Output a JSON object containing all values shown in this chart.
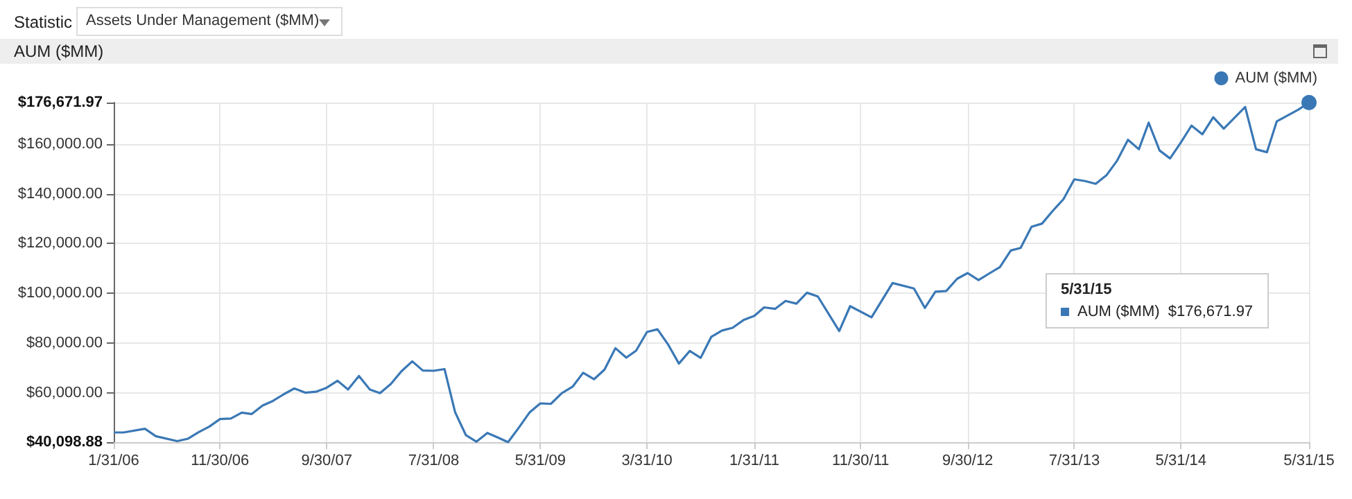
{
  "chart_data": {
    "type": "line",
    "title": "AUM ($MM)",
    "annotations": [
      "Statistic",
      "Assets Under Management ($MM)",
      "5/31/15\nAUM ($MM)  $176,671.97"
    ],
    "series": [
      {
        "name": "AUM ($MM)",
        "color": "#3a78b5",
        "x": [
          "2006-01-31",
          "2006-02-28",
          "2006-04-30",
          "2006-05-31",
          "2006-07-31",
          "2006-08-31",
          "2006-09-30",
          "2006-10-31",
          "2006-11-30",
          "2006-12-31",
          "2007-01-31",
          "2007-02-28",
          "2007-03-31",
          "2007-04-30",
          "2007-05-31",
          "2007-06-30",
          "2007-07-31",
          "2007-08-31",
          "2007-09-30",
          "2007-10-31",
          "2007-11-30",
          "2007-12-31",
          "2008-01-31",
          "2008-02-29",
          "2008-03-31",
          "2008-04-30",
          "2008-05-31",
          "2008-06-30",
          "2008-07-31",
          "2008-08-31",
          "2008-09-30",
          "2008-10-31",
          "2008-11-30",
          "2008-12-31",
          "2009-01-31",
          "2009-02-28",
          "2009-03-31",
          "2009-04-30",
          "2009-05-31",
          "2009-06-30",
          "2009-07-31",
          "2009-08-31",
          "2009-09-30",
          "2009-10-31",
          "2009-11-30",
          "2009-12-31",
          "2010-01-31",
          "2010-02-28",
          "2010-03-31",
          "2010-04-30",
          "2010-05-31",
          "2010-06-30",
          "2010-07-31",
          "2010-08-31",
          "2010-09-30",
          "2010-10-31",
          "2010-11-30",
          "2010-12-31",
          "2011-01-31",
          "2011-02-28",
          "2011-03-31",
          "2011-04-30",
          "2011-05-31",
          "2011-06-30",
          "2011-07-31",
          "2011-09-30",
          "2011-10-31",
          "2011-12-31",
          "2012-02-29",
          "2012-04-30",
          "2012-05-31",
          "2012-06-30",
          "2012-07-31",
          "2012-08-31",
          "2012-09-30",
          "2012-10-31",
          "2012-11-30",
          "2012-12-31",
          "2013-01-31",
          "2013-02-28",
          "2013-03-31",
          "2013-04-30",
          "2013-05-31",
          "2013-06-30",
          "2013-07-31",
          "2013-08-31",
          "2013-09-30",
          "2013-10-31",
          "2013-11-30",
          "2013-12-31",
          "2014-01-31",
          "2014-02-28",
          "2014-03-31",
          "2014-04-30",
          "2014-05-31",
          "2014-06-30",
          "2014-07-31",
          "2014-08-31",
          "2014-09-30",
          "2014-11-30",
          "2014-12-31",
          "2015-01-31",
          "2015-02-28",
          "2015-03-31",
          "2015-04-30",
          "2015-05-31"
        ],
        "values": [
          44000,
          44000,
          45500,
          42500,
          40500,
          41500,
          44100,
          46400,
          49400,
          49600,
          52000,
          51400,
          54800,
          56700,
          59400,
          61700,
          60000,
          60400,
          62000,
          64800,
          61300,
          66700,
          61300,
          59800,
          63500,
          68600,
          72600,
          68900,
          68800,
          69500,
          52200,
          42900,
          40300,
          43800,
          41900,
          40098.88,
          46000,
          52000,
          55700,
          55500,
          59800,
          62400,
          68000,
          65400,
          69300,
          77900,
          74100,
          76900,
          84400,
          85500,
          79200,
          71700,
          76800,
          74000,
          82400,
          85000,
          86100,
          89200,
          90900,
          94300,
          93700,
          96900,
          95800,
          100200,
          98700,
          84800,
          94800,
          90300,
          104100,
          101900,
          94100,
          100600,
          100900,
          105800,
          108100,
          105300,
          107900,
          110500,
          117200,
          118200,
          126700,
          128000,
          133200,
          137800,
          145800,
          145100,
          144000,
          147500,
          153300,
          161700,
          157900,
          168600,
          157400,
          154200,
          160700,
          167400,
          163900,
          170800,
          166200,
          174900,
          157900,
          156700,
          169100,
          171500,
          173800,
          176671.97
        ]
      }
    ],
    "xlim": [
      "2006-01-31",
      "2015-05-31"
    ],
    "xticks": [
      {
        "value": "2006-01-31",
        "label": "1/31/06"
      },
      {
        "value": "2006-11-30",
        "label": "11/30/06"
      },
      {
        "value": "2007-09-30",
        "label": "9/30/07"
      },
      {
        "value": "2008-07-31",
        "label": "7/31/08"
      },
      {
        "value": "2009-05-31",
        "label": "5/31/09"
      },
      {
        "value": "2010-03-31",
        "label": "3/31/10"
      },
      {
        "value": "2011-01-31",
        "label": "1/31/11"
      },
      {
        "value": "2011-11-30",
        "label": "11/30/11"
      },
      {
        "value": "2012-09-30",
        "label": "9/30/12"
      },
      {
        "value": "2013-07-31",
        "label": "7/31/13"
      },
      {
        "value": "2014-05-31",
        "label": "5/31/14"
      },
      {
        "value": "2015-05-31",
        "label": "5/31/15"
      }
    ],
    "ylim": [
      40098.88,
      176671.97
    ],
    "yticks": [
      {
        "value": 40098.88,
        "label": "$40,098.88"
      },
      {
        "value": 60000,
        "label": "$60,000.00"
      },
      {
        "value": 80000,
        "label": "$80,000.00"
      },
      {
        "value": 100000,
        "label": "$100,000.00"
      },
      {
        "value": 120000,
        "label": "$120,000.00"
      },
      {
        "value": 140000,
        "label": "$140,000.00"
      },
      {
        "value": 160000,
        "label": "$160,000.00"
      },
      {
        "value": 176671.97,
        "label": "$176,671.97"
      }
    ],
    "grid": true,
    "legend": "top right",
    "marker": "none",
    "line_style": "solid"
  }
}
